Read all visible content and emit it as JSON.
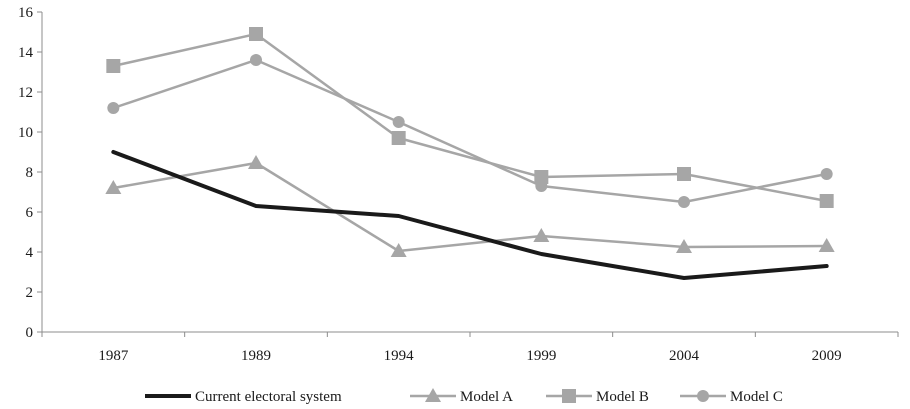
{
  "chart_data": {
    "type": "line",
    "categories": [
      "1987",
      "1989",
      "1994",
      "1999",
      "2004",
      "2009"
    ],
    "ylim": [
      0,
      16
    ],
    "yticks": [
      0,
      2,
      4,
      6,
      8,
      10,
      12,
      14,
      16
    ],
    "grid": false,
    "legend_position": "bottom",
    "series": [
      {
        "name": "Current electoral system",
        "values": [
          9.0,
          6.3,
          5.8,
          3.9,
          2.7,
          3.3
        ],
        "color": "#1a1a1a",
        "marker": "none"
      },
      {
        "name": "Model A",
        "values": [
          7.2,
          8.45,
          4.05,
          4.8,
          4.25,
          4.3
        ],
        "color": "#a6a6a6",
        "marker": "triangle"
      },
      {
        "name": "Model B",
        "values": [
          13.3,
          14.9,
          9.7,
          7.75,
          7.9,
          6.55
        ],
        "color": "#a6a6a6",
        "marker": "square"
      },
      {
        "name": "Model C",
        "values": [
          11.2,
          13.6,
          10.5,
          7.3,
          6.5,
          7.9
        ],
        "color": "#a6a6a6",
        "marker": "circle"
      }
    ]
  }
}
